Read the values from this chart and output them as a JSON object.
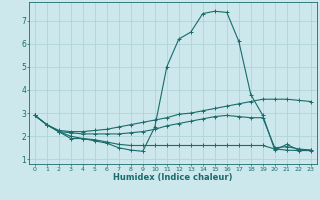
{
  "xlabel": "Humidex (Indice chaleur)",
  "bg_color": "#cce8ec",
  "grid_color": "#aad0d6",
  "line_color": "#1a6b6b",
  "spine_color": "#1a6b6b",
  "xlim": [
    -0.5,
    23.5
  ],
  "ylim": [
    0.8,
    7.8
  ],
  "xticks": [
    0,
    1,
    2,
    3,
    4,
    5,
    6,
    7,
    8,
    9,
    10,
    11,
    12,
    13,
    14,
    15,
    16,
    17,
    18,
    19,
    20,
    21,
    22,
    23
  ],
  "yticks": [
    1,
    2,
    3,
    4,
    5,
    6,
    7
  ],
  "line1_x": [
    0,
    1,
    2,
    3,
    4,
    5,
    6,
    7,
    8,
    9,
    10,
    11,
    12,
    13,
    14,
    15,
    16,
    17,
    18,
    19,
    20,
    21,
    22,
    23
  ],
  "line1_y": [
    2.9,
    2.5,
    2.2,
    1.9,
    1.9,
    1.8,
    1.7,
    1.5,
    1.4,
    1.35,
    2.4,
    5.0,
    6.2,
    6.5,
    7.3,
    7.4,
    7.35,
    6.1,
    3.8,
    2.9,
    1.4,
    1.65,
    1.4,
    1.4
  ],
  "line2_x": [
    0,
    1,
    2,
    3,
    4,
    5,
    6,
    7,
    8,
    9,
    10,
    11,
    12,
    13,
    14,
    15,
    16,
    17,
    18,
    19,
    20,
    21,
    22,
    23
  ],
  "line2_y": [
    2.9,
    2.5,
    2.25,
    2.2,
    2.2,
    2.25,
    2.3,
    2.4,
    2.5,
    2.6,
    2.7,
    2.8,
    2.95,
    3.0,
    3.1,
    3.2,
    3.3,
    3.4,
    3.5,
    3.6,
    3.6,
    3.6,
    3.55,
    3.5
  ],
  "line3_x": [
    0,
    1,
    2,
    3,
    4,
    5,
    6,
    7,
    8,
    9,
    10,
    11,
    12,
    13,
    14,
    15,
    16,
    17,
    18,
    19,
    20,
    21,
    22,
    23
  ],
  "line3_y": [
    2.9,
    2.5,
    2.2,
    2.15,
    2.1,
    2.1,
    2.1,
    2.1,
    2.15,
    2.2,
    2.3,
    2.45,
    2.55,
    2.65,
    2.75,
    2.85,
    2.9,
    2.85,
    2.8,
    2.8,
    1.5,
    1.55,
    1.45,
    1.4
  ],
  "line4_x": [
    0,
    1,
    2,
    3,
    4,
    5,
    6,
    7,
    8,
    9,
    10,
    11,
    12,
    13,
    14,
    15,
    16,
    17,
    18,
    19,
    20,
    21,
    22,
    23
  ],
  "line4_y": [
    2.9,
    2.5,
    2.2,
    2.0,
    1.9,
    1.85,
    1.75,
    1.65,
    1.6,
    1.6,
    1.6,
    1.6,
    1.6,
    1.6,
    1.6,
    1.6,
    1.6,
    1.6,
    1.6,
    1.6,
    1.45,
    1.4,
    1.38,
    1.38
  ]
}
